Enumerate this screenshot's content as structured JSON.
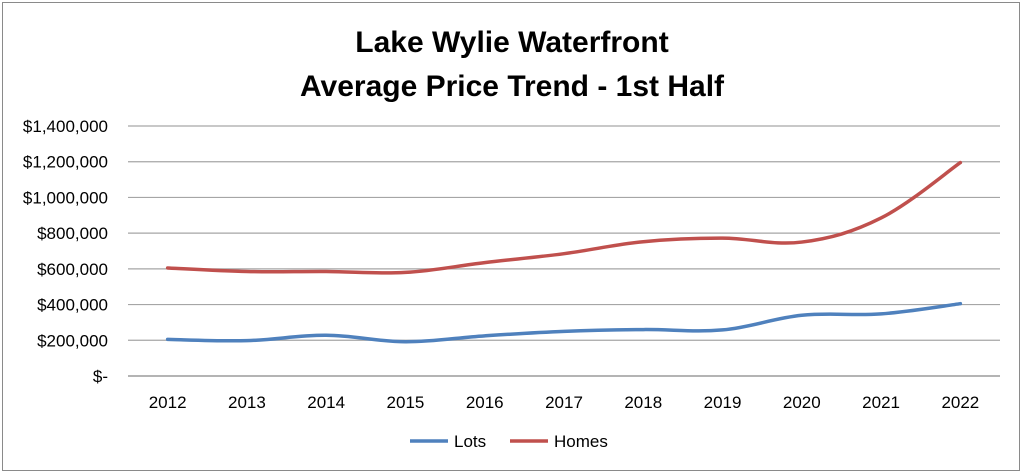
{
  "chart_data": {
    "type": "line",
    "title": [
      "Lake Wylie Waterfront",
      "Average Price Trend - 1st Half"
    ],
    "x": [
      "2012",
      "2013",
      "2014",
      "2015",
      "2016",
      "2017",
      "2018",
      "2019",
      "2020",
      "2021",
      "2022"
    ],
    "series": [
      {
        "name": "Lots",
        "color": "#4f81bd",
        "values": [
          205000,
          198000,
          228000,
          192000,
          225000,
          250000,
          260000,
          258000,
          340000,
          348000,
          405000
        ]
      },
      {
        "name": "Homes",
        "color": "#c0504d",
        "values": [
          605000,
          585000,
          585000,
          580000,
          635000,
          685000,
          752000,
          772000,
          750000,
          885000,
          1195000
        ]
      }
    ],
    "ylim": [
      0,
      1400000
    ],
    "yticks": [
      0,
      200000,
      400000,
      600000,
      800000,
      1000000,
      1200000,
      1400000
    ],
    "ytick_labels": [
      "$-",
      "$200,000",
      "$400,000",
      "$600,000",
      "$800,000",
      "$1,000,000",
      "$1,200,000",
      "$1,400,000"
    ],
    "grid": true,
    "legend": "bottom"
  }
}
